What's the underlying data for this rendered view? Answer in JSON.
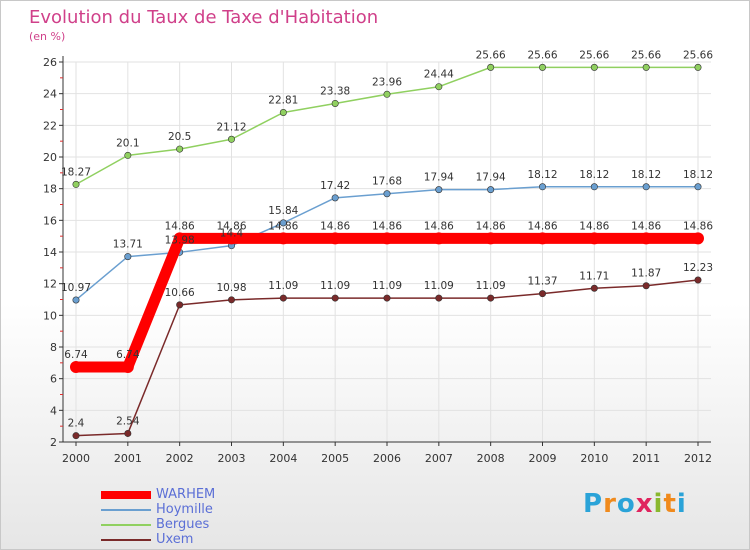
{
  "title": "Evolution du Taux de Taxe d'Habitation",
  "subtitle": "(en %)",
  "logo": {
    "letters": [
      "P",
      "r",
      "o",
      "x",
      "i",
      "t",
      "i"
    ],
    "colors": [
      "#2aa3d8",
      "#f08a1c",
      "#2aa3d8",
      "#e0245e",
      "#8ab82e",
      "#f08a1c",
      "#2aa3d8"
    ]
  },
  "colors": {
    "title": "#d0408a",
    "legend_text": "#5b6fd6",
    "axis": "#333333",
    "grid": "#e2e2e2"
  },
  "chart_data": {
    "type": "line",
    "x": [
      "2000",
      "2001",
      "2002",
      "2003",
      "2004",
      "2005",
      "2006",
      "2007",
      "2008",
      "2009",
      "2010",
      "2011",
      "2012"
    ],
    "ylim": [
      2,
      26
    ],
    "yticks": [
      2,
      4,
      6,
      8,
      10,
      12,
      14,
      16,
      18,
      20,
      22,
      24,
      26
    ],
    "grid": true,
    "legend_position": "bottom-left",
    "series": [
      {
        "name": "WARHEM",
        "color": "#ff0000",
        "values": [
          6.74,
          6.74,
          14.86,
          14.86,
          14.86,
          14.86,
          14.86,
          14.86,
          14.86,
          14.86,
          14.86,
          14.86,
          14.86
        ],
        "labels": [
          "6.74",
          "6.74",
          "14.86",
          "14.86",
          "14.86",
          "14.86",
          "14.86",
          "14.86",
          "14.86",
          "14.86",
          "14.86",
          "14.86",
          "14.86"
        ]
      },
      {
        "name": "Hoymille",
        "color": "#6a9fd0",
        "values": [
          10.97,
          13.71,
          13.98,
          14.4,
          15.84,
          17.42,
          17.68,
          17.94,
          17.94,
          18.12,
          18.12,
          18.12,
          18.12
        ],
        "labels": [
          "10.97",
          "13.71",
          "13.98",
          "14.4",
          "15.84",
          "17.42",
          "17.68",
          "17.94",
          "17.94",
          "18.12",
          "18.12",
          "18.12",
          "18.12"
        ]
      },
      {
        "name": "Bergues",
        "color": "#90d060",
        "values": [
          18.27,
          20.1,
          20.5,
          21.12,
          22.81,
          23.38,
          23.96,
          24.44,
          25.66,
          25.66,
          25.66,
          25.66,
          25.66
        ],
        "labels": [
          "18.27",
          "20.1",
          "20.5",
          "21.12",
          "22.81",
          "23.38",
          "23.96",
          "24.44",
          "25.66",
          "25.66",
          "25.66",
          "25.66",
          "25.66"
        ]
      },
      {
        "name": "Uxem",
        "color": "#7a2a2a",
        "values": [
          2.4,
          2.54,
          10.66,
          10.98,
          11.09,
          11.09,
          11.09,
          11.09,
          11.09,
          11.37,
          11.71,
          11.87,
          12.23
        ],
        "labels": [
          "2.4",
          "2.54",
          "10.66",
          "10.98",
          "11.09",
          "11.09",
          "11.09",
          "11.09",
          "11.09",
          "11.37",
          "11.71",
          "11.87",
          "12.23"
        ]
      }
    ]
  }
}
